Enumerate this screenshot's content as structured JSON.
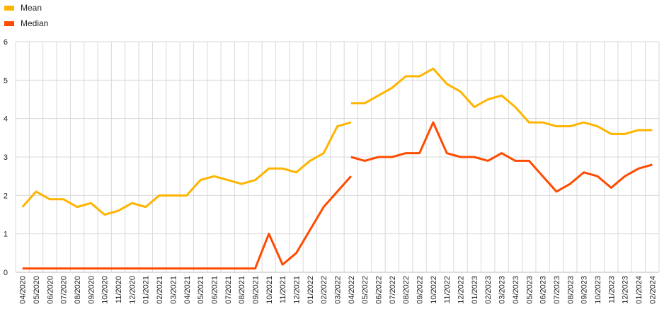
{
  "chart_data": {
    "type": "line",
    "title": "",
    "xlabel": "",
    "ylabel": "",
    "ylim": [
      0,
      6
    ],
    "yticks": [
      0,
      1,
      2,
      3,
      4,
      5,
      6
    ],
    "grid": true,
    "legend_position": "top-left",
    "colors": {
      "Mean": "#FFB400",
      "Median": "#FF4B00"
    },
    "x": [
      "04/2020",
      "05/2020",
      "06/2020",
      "07/2020",
      "08/2020",
      "09/2020",
      "10/2020",
      "11/2020",
      "12/2020",
      "01/2021",
      "02/2021",
      "03/2021",
      "04/2021",
      "05/2021",
      "06/2021",
      "07/2021",
      "08/2021",
      "09/2021",
      "10/2021",
      "11/2021",
      "12/2021",
      "01/2022",
      "02/2022",
      "03/2022",
      "04/2022",
      "05/2022",
      "06/2022",
      "07/2022",
      "08/2022",
      "09/2022",
      "10/2022",
      "11/2022",
      "12/2022",
      "01/2023",
      "02/2023",
      "03/2023",
      "04/2023",
      "05/2023",
      "06/2023",
      "07/2023",
      "08/2023",
      "09/2023",
      "10/2023",
      "11/2023",
      "12/2023",
      "01/2024",
      "02/2024"
    ],
    "series": [
      {
        "name": "Mean",
        "segments": [
          {
            "x": [
              "04/2020",
              "05/2020",
              "06/2020",
              "07/2020",
              "08/2020",
              "09/2020",
              "10/2020",
              "11/2020",
              "12/2020",
              "01/2021",
              "02/2021",
              "03/2021",
              "04/2021",
              "05/2021",
              "06/2021",
              "07/2021",
              "08/2021",
              "09/2021",
              "10/2021",
              "11/2021",
              "12/2021",
              "01/2022",
              "02/2022",
              "03/2022",
              "04/2022"
            ],
            "values": [
              1.7,
              2.1,
              1.9,
              1.9,
              1.7,
              1.8,
              1.5,
              1.6,
              1.8,
              1.7,
              2.0,
              2.0,
              2.0,
              2.4,
              2.5,
              2.4,
              2.3,
              2.4,
              2.7,
              2.7,
              2.6,
              2.9,
              3.1,
              3.8,
              3.9
            ]
          },
          {
            "x": [
              "04/2022",
              "05/2022",
              "06/2022",
              "07/2022",
              "08/2022",
              "09/2022",
              "10/2022",
              "11/2022",
              "12/2022",
              "01/2023",
              "02/2023",
              "03/2023",
              "04/2023",
              "05/2023",
              "06/2023",
              "07/2023",
              "08/2023",
              "09/2023",
              "10/2023",
              "11/2023",
              "12/2023",
              "01/2024",
              "02/2024"
            ],
            "values": [
              4.4,
              4.4,
              4.6,
              4.8,
              5.1,
              5.1,
              5.3,
              4.9,
              4.7,
              4.3,
              4.5,
              4.6,
              4.3,
              3.9,
              3.9,
              3.8,
              3.8,
              3.9,
              3.8,
              3.6,
              3.6,
              3.7,
              3.7
            ]
          }
        ]
      },
      {
        "name": "Median",
        "segments": [
          {
            "x": [
              "04/2020",
              "05/2020",
              "06/2020",
              "07/2020",
              "08/2020",
              "09/2020",
              "10/2020",
              "11/2020",
              "12/2020",
              "01/2021",
              "02/2021",
              "03/2021",
              "04/2021",
              "05/2021",
              "06/2021",
              "07/2021",
              "08/2021",
              "09/2021",
              "10/2021",
              "11/2021",
              "12/2021",
              "01/2022",
              "02/2022",
              "03/2022",
              "04/2022"
            ],
            "values": [
              0.1,
              0.1,
              0.1,
              0.1,
              0.1,
              0.1,
              0.1,
              0.1,
              0.1,
              0.1,
              0.1,
              0.1,
              0.1,
              0.1,
              0.1,
              0.1,
              0.1,
              0.1,
              1.0,
              0.2,
              0.5,
              1.1,
              1.7,
              2.1,
              2.5
            ]
          },
          {
            "x": [
              "04/2022",
              "05/2022",
              "06/2022",
              "07/2022",
              "08/2022",
              "09/2022",
              "10/2022",
              "11/2022",
              "12/2022",
              "01/2023",
              "02/2023",
              "03/2023",
              "04/2023",
              "05/2023",
              "06/2023",
              "07/2023",
              "08/2023",
              "09/2023",
              "10/2023",
              "11/2023",
              "12/2023",
              "01/2024",
              "02/2024"
            ],
            "values": [
              3.0,
              2.9,
              3.0,
              3.0,
              3.1,
              3.1,
              3.9,
              3.1,
              3.0,
              3.0,
              2.9,
              3.1,
              2.9,
              2.9,
              2.5,
              2.1,
              2.3,
              2.6,
              2.5,
              2.2,
              2.5,
              2.7,
              2.8
            ]
          }
        ]
      }
    ]
  }
}
